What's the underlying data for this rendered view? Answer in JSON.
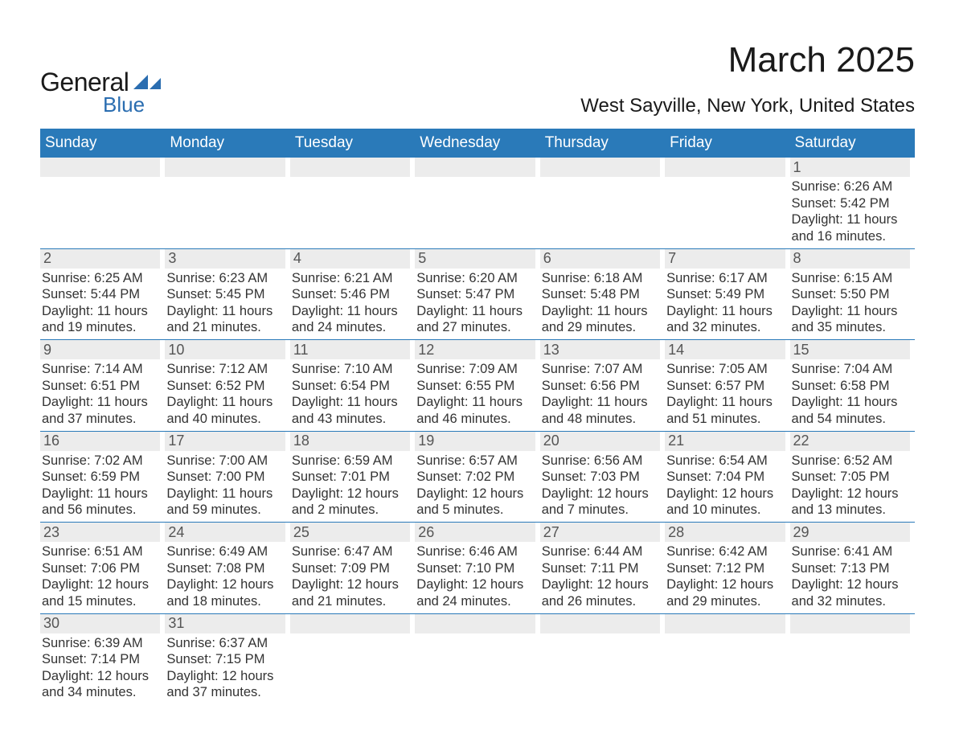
{
  "logo": {
    "main": "General",
    "sub": "Blue",
    "brand_color": "#2a7ab9"
  },
  "title": "March 2025",
  "subtitle": "West Sayville, New York, United States",
  "colors": {
    "header_bg": "#2a7ab9",
    "header_text": "#ffffff",
    "daynum_bg": "#ececec",
    "text": "#333333",
    "page_bg": "#ffffff"
  },
  "day_headers": [
    "Sunday",
    "Monday",
    "Tuesday",
    "Wednesday",
    "Thursday",
    "Friday",
    "Saturday"
  ],
  "weeks": [
    [
      {
        "n": "",
        "sr": "",
        "ss": "",
        "dl": ""
      },
      {
        "n": "",
        "sr": "",
        "ss": "",
        "dl": ""
      },
      {
        "n": "",
        "sr": "",
        "ss": "",
        "dl": ""
      },
      {
        "n": "",
        "sr": "",
        "ss": "",
        "dl": ""
      },
      {
        "n": "",
        "sr": "",
        "ss": "",
        "dl": ""
      },
      {
        "n": "",
        "sr": "",
        "ss": "",
        "dl": ""
      },
      {
        "n": "1",
        "sr": "6:26 AM",
        "ss": "5:42 PM",
        "dl": "11 hours and 16 minutes."
      }
    ],
    [
      {
        "n": "2",
        "sr": "6:25 AM",
        "ss": "5:44 PM",
        "dl": "11 hours and 19 minutes."
      },
      {
        "n": "3",
        "sr": "6:23 AM",
        "ss": "5:45 PM",
        "dl": "11 hours and 21 minutes."
      },
      {
        "n": "4",
        "sr": "6:21 AM",
        "ss": "5:46 PM",
        "dl": "11 hours and 24 minutes."
      },
      {
        "n": "5",
        "sr": "6:20 AM",
        "ss": "5:47 PM",
        "dl": "11 hours and 27 minutes."
      },
      {
        "n": "6",
        "sr": "6:18 AM",
        "ss": "5:48 PM",
        "dl": "11 hours and 29 minutes."
      },
      {
        "n": "7",
        "sr": "6:17 AM",
        "ss": "5:49 PM",
        "dl": "11 hours and 32 minutes."
      },
      {
        "n": "8",
        "sr": "6:15 AM",
        "ss": "5:50 PM",
        "dl": "11 hours and 35 minutes."
      }
    ],
    [
      {
        "n": "9",
        "sr": "7:14 AM",
        "ss": "6:51 PM",
        "dl": "11 hours and 37 minutes."
      },
      {
        "n": "10",
        "sr": "7:12 AM",
        "ss": "6:52 PM",
        "dl": "11 hours and 40 minutes."
      },
      {
        "n": "11",
        "sr": "7:10 AM",
        "ss": "6:54 PM",
        "dl": "11 hours and 43 minutes."
      },
      {
        "n": "12",
        "sr": "7:09 AM",
        "ss": "6:55 PM",
        "dl": "11 hours and 46 minutes."
      },
      {
        "n": "13",
        "sr": "7:07 AM",
        "ss": "6:56 PM",
        "dl": "11 hours and 48 minutes."
      },
      {
        "n": "14",
        "sr": "7:05 AM",
        "ss": "6:57 PM",
        "dl": "11 hours and 51 minutes."
      },
      {
        "n": "15",
        "sr": "7:04 AM",
        "ss": "6:58 PM",
        "dl": "11 hours and 54 minutes."
      }
    ],
    [
      {
        "n": "16",
        "sr": "7:02 AM",
        "ss": "6:59 PM",
        "dl": "11 hours and 56 minutes."
      },
      {
        "n": "17",
        "sr": "7:00 AM",
        "ss": "7:00 PM",
        "dl": "11 hours and 59 minutes."
      },
      {
        "n": "18",
        "sr": "6:59 AM",
        "ss": "7:01 PM",
        "dl": "12 hours and 2 minutes."
      },
      {
        "n": "19",
        "sr": "6:57 AM",
        "ss": "7:02 PM",
        "dl": "12 hours and 5 minutes."
      },
      {
        "n": "20",
        "sr": "6:56 AM",
        "ss": "7:03 PM",
        "dl": "12 hours and 7 minutes."
      },
      {
        "n": "21",
        "sr": "6:54 AM",
        "ss": "7:04 PM",
        "dl": "12 hours and 10 minutes."
      },
      {
        "n": "22",
        "sr": "6:52 AM",
        "ss": "7:05 PM",
        "dl": "12 hours and 13 minutes."
      }
    ],
    [
      {
        "n": "23",
        "sr": "6:51 AM",
        "ss": "7:06 PM",
        "dl": "12 hours and 15 minutes."
      },
      {
        "n": "24",
        "sr": "6:49 AM",
        "ss": "7:08 PM",
        "dl": "12 hours and 18 minutes."
      },
      {
        "n": "25",
        "sr": "6:47 AM",
        "ss": "7:09 PM",
        "dl": "12 hours and 21 minutes."
      },
      {
        "n": "26",
        "sr": "6:46 AM",
        "ss": "7:10 PM",
        "dl": "12 hours and 24 minutes."
      },
      {
        "n": "27",
        "sr": "6:44 AM",
        "ss": "7:11 PM",
        "dl": "12 hours and 26 minutes."
      },
      {
        "n": "28",
        "sr": "6:42 AM",
        "ss": "7:12 PM",
        "dl": "12 hours and 29 minutes."
      },
      {
        "n": "29",
        "sr": "6:41 AM",
        "ss": "7:13 PM",
        "dl": "12 hours and 32 minutes."
      }
    ],
    [
      {
        "n": "30",
        "sr": "6:39 AM",
        "ss": "7:14 PM",
        "dl": "12 hours and 34 minutes."
      },
      {
        "n": "31",
        "sr": "6:37 AM",
        "ss": "7:15 PM",
        "dl": "12 hours and 37 minutes."
      },
      {
        "n": "",
        "sr": "",
        "ss": "",
        "dl": ""
      },
      {
        "n": "",
        "sr": "",
        "ss": "",
        "dl": ""
      },
      {
        "n": "",
        "sr": "",
        "ss": "",
        "dl": ""
      },
      {
        "n": "",
        "sr": "",
        "ss": "",
        "dl": ""
      },
      {
        "n": "",
        "sr": "",
        "ss": "",
        "dl": ""
      }
    ]
  ],
  "labels": {
    "sunrise": "Sunrise:",
    "sunset": "Sunset:",
    "daylight": "Daylight:"
  }
}
